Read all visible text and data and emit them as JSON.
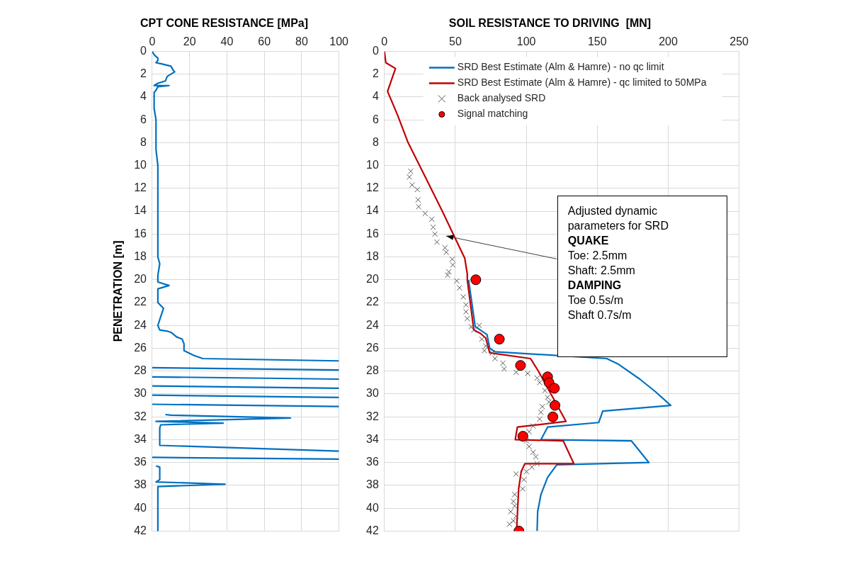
{
  "chart_data": [
    {
      "type": "line",
      "title": "CPT CONE RESISTANCE [MPa]",
      "ylabel": "PENETRATION [m]",
      "xlim": [
        0,
        100
      ],
      "xticks": [
        0,
        20,
        40,
        60,
        80,
        100
      ],
      "ylim": [
        42,
        0
      ],
      "yticks": [
        0,
        2,
        4,
        6,
        8,
        10,
        12,
        14,
        16,
        18,
        20,
        22,
        24,
        26,
        28,
        30,
        32,
        34,
        36,
        38,
        40,
        42
      ],
      "grid": true,
      "legend": false,
      "series": [
        {
          "color": "#0070c0",
          "x": [
            0,
            1,
            3,
            3,
            2,
            5,
            10,
            11,
            12,
            10,
            8,
            7,
            3,
            1,
            9,
            3,
            2,
            1,
            1,
            2,
            2,
            3,
            3,
            4,
            3,
            3,
            9,
            3,
            3,
            6,
            4,
            3,
            4,
            8,
            10,
            13,
            16,
            17,
            17,
            22,
            27,
            100
          ],
          "values": [
            0,
            0.3,
            0.6,
            0.8,
            1.0,
            1.1,
            1.3,
            1.6,
            1.8,
            2.0,
            2.2,
            2.6,
            2.8,
            3.0,
            3.0,
            3.1,
            3.4,
            3.6,
            5,
            6,
            8.6,
            10,
            18,
            18.6,
            19.6,
            20.2,
            20.5,
            20.8,
            22,
            22.5,
            23.5,
            24,
            24.4,
            24.5,
            24.6,
            25.0,
            25.2,
            25.6,
            26.2,
            26.6,
            26.9,
            27.1
          ]
        },
        {
          "color": "#0070c0",
          "x": [
            0,
            100
          ],
          "values": [
            27.7,
            27.9
          ]
        },
        {
          "color": "#0070c0",
          "x": [
            0,
            100
          ],
          "values": [
            28.5,
            28.7
          ]
        },
        {
          "color": "#0070c0",
          "x": [
            0,
            100
          ],
          "values": [
            29.3,
            29.5
          ]
        },
        {
          "color": "#0070c0",
          "x": [
            0,
            100
          ],
          "values": [
            30.1,
            30.3
          ]
        },
        {
          "color": "#0070c0",
          "x": [
            0,
            100
          ],
          "values": [
            30.9,
            31.1
          ]
        },
        {
          "color": "#0070c0",
          "x": [
            7,
            10,
            74,
            2,
            38,
            4.5,
            4,
            4,
            100
          ],
          "values": [
            31.8,
            31.85,
            32.1,
            32.4,
            32.55,
            32.7,
            33.0,
            34.5,
            35.0
          ]
        },
        {
          "color": "#0070c0",
          "x": [
            0,
            100
          ],
          "values": [
            35.55,
            35.7
          ]
        },
        {
          "color": "#0070c0",
          "x": [
            2,
            4,
            4,
            2,
            39,
            3,
            3
          ],
          "values": [
            36.3,
            36.4,
            37.5,
            37.7,
            37.9,
            38.1,
            42
          ]
        }
      ]
    },
    {
      "type": "line",
      "title": "SOIL RESISTANCE TO DRIVING  [MN]",
      "xlim": [
        0,
        250
      ],
      "xticks": [
        0,
        50,
        100,
        150,
        200,
        250
      ],
      "ylim": [
        42,
        0
      ],
      "yticks": [
        0,
        2,
        4,
        6,
        8,
        10,
        12,
        14,
        16,
        18,
        20,
        22,
        24,
        26,
        28,
        30,
        32,
        34,
        36,
        38,
        40,
        42
      ],
      "grid": true,
      "legend": "top",
      "annotations": [
        "Adjusted dynamic\nparameters for SRD\nQUAKE\nToe: 2.5mm\nShaft: 2.5mm\nDAMPING\nToe 0.5s/m\nShaft 0.7s/m"
      ],
      "series": [
        {
          "name": "SRD Best Estimate (Alm & Hamre) - no qc limit",
          "type": "line",
          "color": "#0070c0",
          "x": [
            59.3,
            64,
            72.3,
            74.2,
            77.9,
            156.7,
            165,
            180,
            191,
            201.8,
            153.9,
            151,
            115,
            110.3,
            174,
            186.4,
            121.5,
            115,
            110.3,
            108,
            107.6
          ],
          "values": [
            20,
            24.1,
            24.8,
            26,
            26.3,
            26.9,
            27.4,
            28.7,
            29.8,
            31,
            31.5,
            32.5,
            32.9,
            34,
            34.1,
            36,
            36.2,
            37.3,
            38.8,
            40.3,
            42
          ]
        },
        {
          "name": "SRD Best Estimate (Alm & Hamre) - qc limited to 50MPa",
          "type": "line",
          "color": "#c00000",
          "x": [
            0,
            1,
            7.8,
            2.2,
            9.3,
            16.7,
            26,
            40.8,
            50,
            56.6,
            58.4,
            58.4,
            63,
            67.7,
            71.4,
            74.2,
            103,
            108.5,
            128,
            93.7,
            92.2,
            126,
            133.5,
            99,
            96.4,
            94.6,
            93.3,
            94.2
          ],
          "values": [
            0,
            1.0,
            1.5,
            3.5,
            5.6,
            8,
            10.3,
            14,
            16.4,
            18.1,
            19.5,
            20,
            24.4,
            24.7,
            25.1,
            26.4,
            26.9,
            28,
            32.4,
            32.9,
            34,
            34.1,
            36.1,
            36.1,
            36.8,
            38.3,
            41.6,
            42
          ]
        },
        {
          "name": "Back analysed SRD",
          "type": "scatter",
          "marker": "cross",
          "color": "#595959",
          "x": [
            18.5,
            17.6,
            19.5,
            23.2,
            23.7,
            24.1,
            28.7,
            33.4,
            34.3,
            35.6,
            37,
            42.7,
            43.6,
            47.8,
            48.2,
            45.4,
            44.5,
            51,
            52.9,
            55.6,
            57.5,
            57.5,
            58.4,
            61.2,
            66.8,
            63,
            68.6,
            71.4,
            70.5,
            76,
            77.9,
            83.5,
            84.4,
            92.8,
            101,
            107.6,
            109.4,
            113.1,
            115,
            115.9,
            111.3,
            110.3,
            109.4,
            104.8,
            102,
            100.1,
            102,
            104.8,
            106.7,
            107.6,
            103.9,
            100.1,
            92.8,
            98.3,
            97.4,
            91.8,
            90.9,
            91.8,
            89,
            92.8,
            90.9,
            88.1
          ],
          "values": [
            10.5,
            11,
            11.7,
            12.1,
            13,
            13.6,
            14.2,
            14.7,
            15.4,
            16,
            16.7,
            17.2,
            17.6,
            18.2,
            18.7,
            19.3,
            19.6,
            20.1,
            20.7,
            21.5,
            22.2,
            22.8,
            23.4,
            24.1,
            24,
            24.4,
            25.2,
            25.8,
            26.2,
            26.4,
            26.9,
            27.3,
            27.8,
            28.1,
            28.2,
            28.6,
            29,
            29.7,
            30.3,
            30.7,
            31.1,
            31.6,
            32.2,
            32.8,
            33.3,
            34.1,
            34.6,
            35.1,
            35.5,
            36.1,
            36.4,
            36.8,
            37,
            37.5,
            38.3,
            38.8,
            39.4,
            39.8,
            40.3,
            40.7,
            41.1,
            41.4
          ]
        },
        {
          "name": "Signal matching",
          "type": "scatter",
          "marker": "circle",
          "color": "#ff0000",
          "x": [
            64.4,
            81,
            95.9,
            115,
            116,
            119.8,
            120.2,
            118.7,
            97.6,
            94.8
          ],
          "values": [
            20,
            25.2,
            27.5,
            28.5,
            29,
            29.5,
            31,
            32,
            33.7,
            42
          ]
        }
      ]
    }
  ]
}
